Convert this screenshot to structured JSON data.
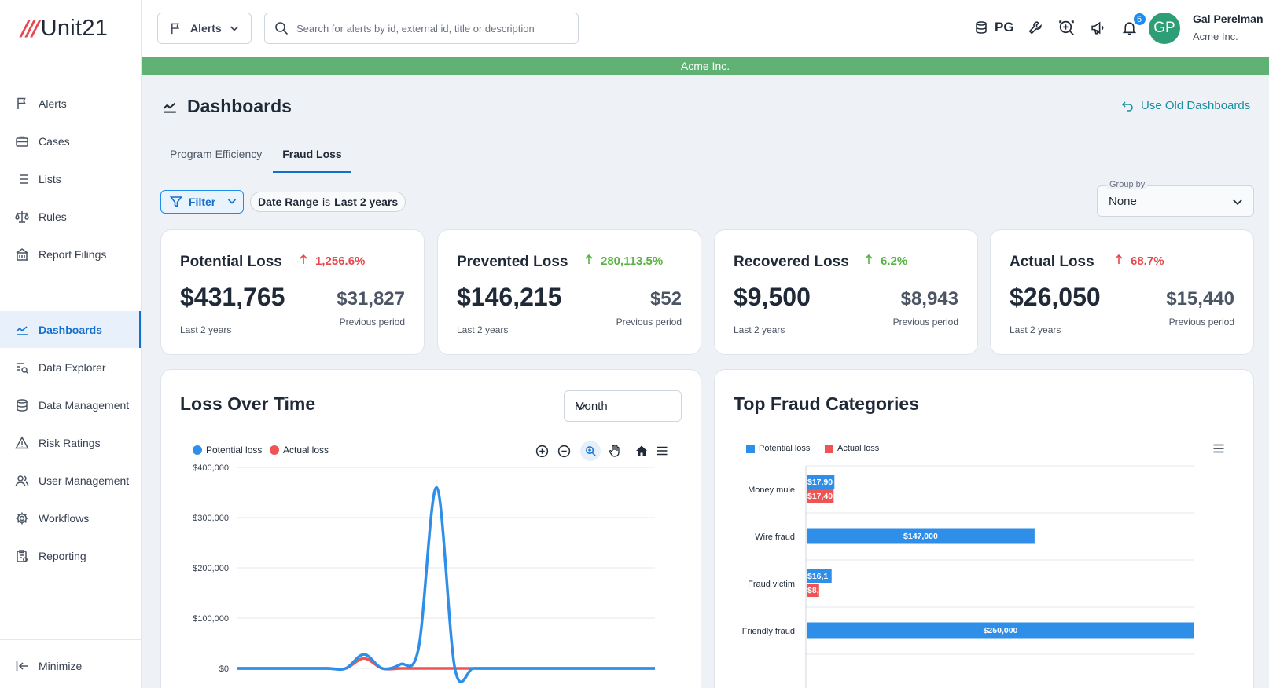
{
  "app": {
    "logo_mark": "///",
    "logo_text": "Unit21",
    "org_banner": "Acme Inc."
  },
  "sidebar": {
    "items": [
      {
        "label": "Alerts",
        "icon": "flag-icon"
      },
      {
        "label": "Cases",
        "icon": "briefcase-icon"
      },
      {
        "label": "Lists",
        "icon": "list-icon"
      },
      {
        "label": "Rules",
        "icon": "scale-icon"
      },
      {
        "label": "Report Filings",
        "icon": "building-icon"
      },
      {
        "label": "Dashboards",
        "icon": "chart-line-icon",
        "active": true
      },
      {
        "label": "Data Explorer",
        "icon": "data-explorer-icon"
      },
      {
        "label": "Data Management",
        "icon": "database-icon"
      },
      {
        "label": "Risk Ratings",
        "icon": "warning-icon"
      },
      {
        "label": "User Management",
        "icon": "users-icon"
      },
      {
        "label": "Workflows",
        "icon": "gear-icon"
      },
      {
        "label": "Reporting",
        "icon": "clipboard-icon"
      }
    ],
    "minimize_label": "Minimize"
  },
  "topbar": {
    "type_select": "Alerts",
    "search_placeholder": "Search for alerts by id, external id, title or description",
    "pg_label": "PG",
    "notification_count": "5",
    "avatar_initials": "GP",
    "user_name": "Gal Perelman",
    "user_org": "Acme Inc."
  },
  "page": {
    "title": "Dashboards",
    "old_dashboards_link": "Use Old Dashboards",
    "tabs": [
      {
        "label": "Program Efficiency",
        "active": false
      },
      {
        "label": "Fraud Loss",
        "active": true
      }
    ],
    "filter_label": "Filter",
    "date_chip": {
      "field": "Date Range",
      "op": "is",
      "value": "Last 2 years"
    },
    "group_by": {
      "label": "Group by",
      "value": "None"
    }
  },
  "kpis": [
    {
      "title": "Potential Loss",
      "change": "1,256.6%",
      "trend": "up",
      "color": "#e5484d",
      "value": "$431,765",
      "sub": "Last 2 years",
      "prev": "$31,827",
      "prev_label": "Previous period"
    },
    {
      "title": "Prevented Loss",
      "change": "280,113.5%",
      "trend": "up",
      "color": "#55b33e",
      "value": "$146,215",
      "sub": "Last 2 years",
      "prev": "$52",
      "prev_label": "Previous period"
    },
    {
      "title": "Recovered Loss",
      "change": "6.2%",
      "trend": "up",
      "color": "#55b33e",
      "value": "$9,500",
      "sub": "Last 2 years",
      "prev": "$8,943",
      "prev_label": "Previous period"
    },
    {
      "title": "Actual Loss",
      "change": "68.7%",
      "trend": "up",
      "color": "#e5484d",
      "value": "$26,050",
      "sub": "Last 2 years",
      "prev": "$15,440",
      "prev_label": "Previous period"
    }
  ],
  "loss_over_time": {
    "title": "Loss Over Time",
    "period_select": "Month",
    "legend": [
      "Potential loss",
      "Actual loss"
    ]
  },
  "top_fraud": {
    "title": "Top Fraud Categories",
    "legend": [
      "Potential loss",
      "Actual loss"
    ]
  },
  "chart_data": [
    {
      "type": "line",
      "title": "Loss Over Time",
      "xlabel": "",
      "ylabel": "",
      "ylim": [
        0,
        400000
      ],
      "y_ticks": [
        "$0",
        "$100,000",
        "$200,000",
        "$300,000",
        "$400,000"
      ],
      "grid": true,
      "legend_position": "top-left",
      "series": [
        {
          "name": "Potential loss",
          "color": "#2f8fe8",
          "values": [
            0,
            0,
            0,
            0,
            0,
            0,
            0,
            28000,
            0,
            8000,
            40000,
            360000,
            0,
            0,
            0,
            0,
            0,
            0,
            0,
            0,
            0,
            0,
            0,
            0
          ]
        },
        {
          "name": "Actual loss",
          "color": "#ef5353",
          "values": [
            0,
            0,
            0,
            0,
            0,
            0,
            0,
            20000,
            0,
            0,
            0,
            0,
            0,
            0,
            0,
            0,
            0,
            0,
            0,
            0,
            0,
            0,
            0,
            0
          ]
        }
      ]
    },
    {
      "type": "bar",
      "orientation": "horizontal",
      "title": "Top Fraud Categories",
      "xlim": [
        0,
        250000
      ],
      "grid": true,
      "legend_position": "top-left",
      "categories": [
        "Money mule",
        "Wire fraud",
        "Fraud victim",
        "Friendly fraud"
      ],
      "series": [
        {
          "name": "Potential loss",
          "color": "#2f8fe8",
          "values": [
            17900,
            147000,
            16100,
            250000
          ],
          "labels": [
            "$17,90",
            "$147,000",
            "$16,1",
            "$250,000"
          ]
        },
        {
          "name": "Actual loss",
          "color": "#ef5353",
          "values": [
            17400,
            null,
            8000,
            null
          ],
          "labels": [
            "$17,40",
            "",
            "$8,",
            ""
          ]
        }
      ]
    }
  ]
}
